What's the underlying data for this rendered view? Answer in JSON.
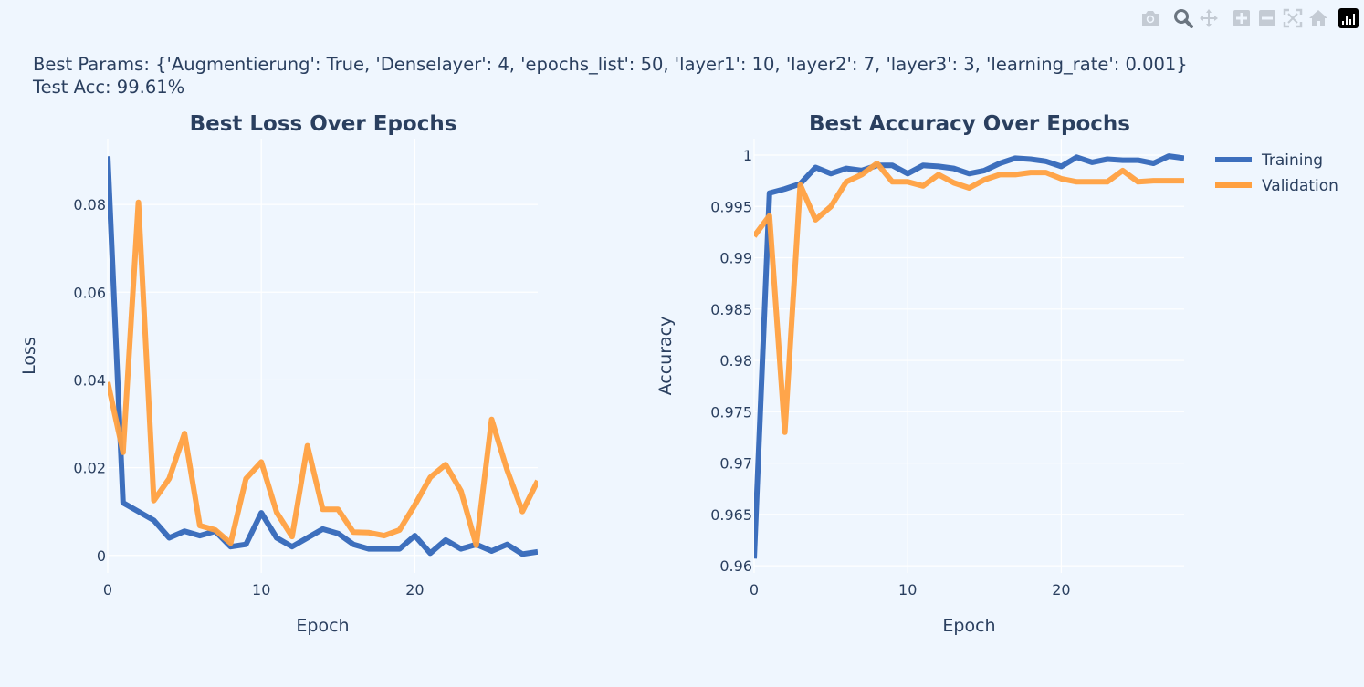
{
  "header": {
    "best_params": "Best Params: {'Augmentierung': True, 'Denselayer': 4, 'epochs_list': 50, 'layer1': 10, 'layer2': 7, 'layer3': 3, 'learning_rate': 0.001}",
    "test_acc": "Test Acc: 99.61%"
  },
  "modebar": {
    "buttons": [
      "camera-icon",
      "zoom-icon",
      "pan-icon",
      "zoom-in-icon",
      "zoom-out-icon",
      "autoscale-icon",
      "reset-axes-icon",
      "plotly-logo-icon"
    ]
  },
  "colors": {
    "training": "#3d6fbd",
    "validation": "#ffa040",
    "grid": "#ffffff",
    "text": "#2a3f5f"
  },
  "chart_data": [
    {
      "type": "line",
      "title": "Best Loss Over Epochs",
      "xlabel": "Epoch",
      "ylabel": "Loss",
      "xlim": [
        0,
        28
      ],
      "ylim": [
        -0.004,
        0.095
      ],
      "xticks": [
        0,
        10,
        20
      ],
      "yticks": [
        0,
        0.02,
        0.04,
        0.06,
        0.08
      ],
      "ytick_labels": [
        "0",
        "0.02",
        "0.04",
        "0.06",
        "0.08"
      ],
      "grid": true,
      "series": [
        {
          "name": "Training",
          "color": "#3d6fbd",
          "x": [
            0,
            1,
            2,
            3,
            4,
            5,
            6,
            7,
            8,
            9,
            10,
            11,
            12,
            13,
            14,
            15,
            16,
            17,
            18,
            19,
            20,
            21,
            22,
            23,
            24,
            25,
            26,
            27,
            28
          ],
          "values": [
            0.091,
            0.012,
            0.01,
            0.008,
            0.004,
            0.0055,
            0.0045,
            0.0055,
            0.002,
            0.0025,
            0.0097,
            0.004,
            0.002,
            0.004,
            0.006,
            0.005,
            0.0025,
            0.0015,
            0.0015,
            0.0015,
            0.0045,
            0.0005,
            0.0035,
            0.0015,
            0.0025,
            0.001,
            0.0025,
            0.0003,
            0.0008
          ]
        },
        {
          "name": "Validation",
          "color": "#ffa040",
          "x": [
            0,
            1,
            2,
            3,
            4,
            5,
            6,
            7,
            8,
            9,
            10,
            11,
            12,
            13,
            14,
            15,
            16,
            17,
            18,
            19,
            20,
            21,
            22,
            23,
            24,
            25,
            26,
            27,
            28
          ],
          "values": [
            0.0395,
            0.0235,
            0.0805,
            0.0125,
            0.0175,
            0.0278,
            0.0068,
            0.0058,
            0.0028,
            0.0175,
            0.0213,
            0.0098,
            0.0043,
            0.025,
            0.0105,
            0.0105,
            0.0053,
            0.0052,
            0.0045,
            0.0058,
            0.0115,
            0.0178,
            0.0207,
            0.0147,
            0.0023,
            0.031,
            0.0195,
            0.01,
            0.017
          ]
        }
      ]
    },
    {
      "type": "line",
      "title": "Best Accuracy Over Epochs",
      "xlabel": "Epoch",
      "ylabel": "Accuracy",
      "xlim": [
        0,
        28
      ],
      "ylim": [
        0.9593,
        1.0016
      ],
      "xticks": [
        0,
        10,
        20
      ],
      "yticks": [
        0.96,
        0.965,
        0.97,
        0.975,
        0.98,
        0.985,
        0.99,
        0.995,
        1
      ],
      "ytick_labels": [
        "0.96",
        "0.965",
        "0.97",
        "0.975",
        "0.98",
        "0.985",
        "0.99",
        "0.995",
        "1"
      ],
      "grid": true,
      "legend_position": "top-right",
      "series": [
        {
          "name": "Training",
          "color": "#3d6fbd",
          "x": [
            0,
            1,
            2,
            3,
            4,
            5,
            6,
            7,
            8,
            9,
            10,
            11,
            12,
            13,
            14,
            15,
            16,
            17,
            18,
            19,
            20,
            21,
            22,
            23,
            24,
            25,
            26,
            27,
            28
          ],
          "values": [
            0.9607,
            0.9963,
            0.9967,
            0.9972,
            0.9988,
            0.9982,
            0.9987,
            0.9985,
            0.999,
            0.999,
            0.9982,
            0.999,
            0.9989,
            0.9987,
            0.9982,
            0.9985,
            0.9992,
            0.9997,
            0.9996,
            0.9994,
            0.9989,
            0.9998,
            0.9993,
            0.9996,
            0.9995,
            0.9995,
            0.9992,
            0.9999,
            0.9997
          ]
        },
        {
          "name": "Validation",
          "color": "#ffa040",
          "x": [
            0,
            1,
            2,
            3,
            4,
            5,
            6,
            7,
            8,
            9,
            10,
            11,
            12,
            13,
            14,
            15,
            16,
            17,
            18,
            19,
            20,
            21,
            22,
            23,
            24,
            25,
            26,
            27,
            28
          ],
          "values": [
            0.9921,
            0.9941,
            0.973,
            0.9971,
            0.9937,
            0.995,
            0.9974,
            0.9981,
            0.9992,
            0.9974,
            0.9974,
            0.997,
            0.9981,
            0.9973,
            0.9968,
            0.9976,
            0.9981,
            0.9981,
            0.9983,
            0.9983,
            0.9977,
            0.9974,
            0.9974,
            0.9974,
            0.9985,
            0.9974,
            0.9975,
            0.9975,
            0.9975
          ]
        }
      ]
    }
  ]
}
